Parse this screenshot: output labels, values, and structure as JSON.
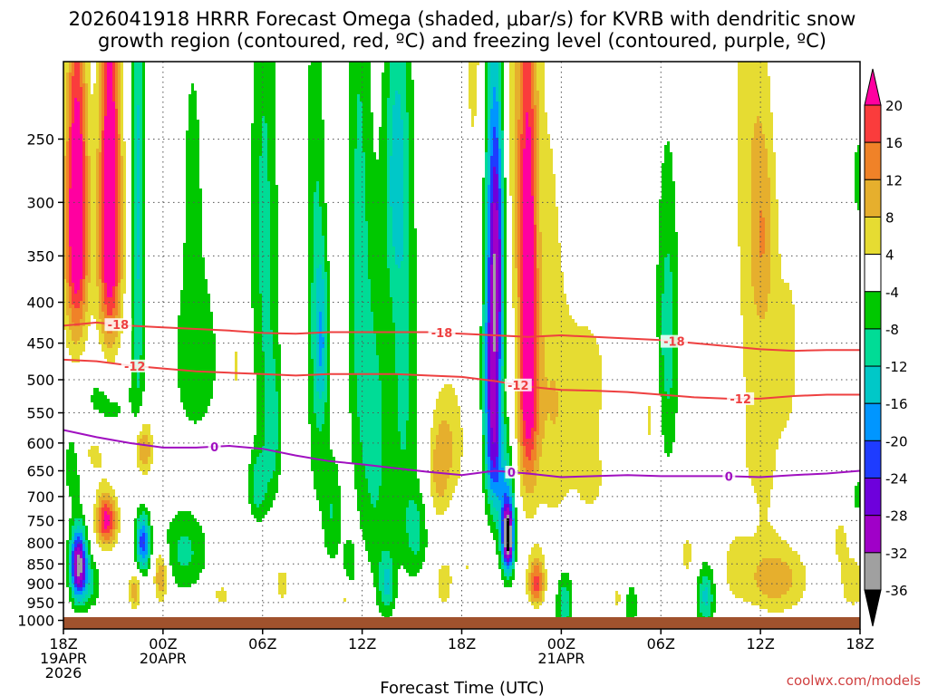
{
  "chart_data": {
    "type": "heatmap",
    "title_lines": [
      "2026041918 HRRR Forecast Omega (shaded, μbar/s) for KVRB with dendritic snow",
      "growth region (contoured, red, ºC) and freezing level (contoured, purple, ºC)"
    ],
    "xlabel": "Forecast Time (UTC)",
    "credit": "coolwx.com/models",
    "x_range_hours": [
      0,
      48
    ],
    "x_ticks": [
      {
        "hour": 0,
        "lines": [
          "18Z",
          "19APR",
          "2026"
        ]
      },
      {
        "hour": 6,
        "lines": [
          "00Z",
          "20APR"
        ]
      },
      {
        "hour": 12,
        "lines": [
          "06Z"
        ]
      },
      {
        "hour": 18,
        "lines": [
          "12Z"
        ]
      },
      {
        "hour": 24,
        "lines": [
          "18Z"
        ]
      },
      {
        "hour": 30,
        "lines": [
          "00Z",
          "21APR"
        ]
      },
      {
        "hour": 36,
        "lines": [
          "06Z"
        ]
      },
      {
        "hour": 42,
        "lines": [
          "12Z"
        ]
      },
      {
        "hour": 48,
        "lines": [
          "18Z"
        ]
      }
    ],
    "y_range_hpa": [
      200,
      1025
    ],
    "y_ticks": [
      "250",
      "300",
      "350",
      "400",
      "450",
      "500",
      "550",
      "600",
      "650",
      "700",
      "750",
      "800",
      "850",
      "900",
      "950",
      "1000"
    ],
    "colorbar": {
      "colors": [
        "#000000",
        "#a0a0a0",
        "#a000c8",
        "#6e00dc",
        "#1e3cff",
        "#0096ff",
        "#00c8c8",
        "#00dc96",
        "#00c800",
        "#ffffff",
        "#e6dc32",
        "#e6af2d",
        "#f08228",
        "#fa3c3c",
        "#ff00a0"
      ],
      "labels": [
        "-36",
        "-32",
        "-28",
        "-24",
        "-20",
        "-16",
        "-12",
        "-8",
        "-4",
        "4",
        "8",
        "12",
        "16",
        "20"
      ]
    },
    "omega_blobs": [
      {
        "x": 0.8,
        "p": 330,
        "sx": 0.5,
        "sp": 80,
        "a": 26
      },
      {
        "x": 0.8,
        "p": 210,
        "sx": 0.4,
        "sp": 70,
        "a": 10
      },
      {
        "x": 2.8,
        "p": 330,
        "sx": 0.5,
        "sp": 90,
        "a": 26
      },
      {
        "x": 2.8,
        "p": 180,
        "sx": 0.4,
        "sp": 70,
        "a": 12
      },
      {
        "x": 2.6,
        "p": 750,
        "sx": 0.45,
        "sp": 40,
        "a": 22
      },
      {
        "x": 1.8,
        "p": 610,
        "sx": 0.8,
        "sp": 40,
        "a": 7
      },
      {
        "x": 0.9,
        "p": 850,
        "sx": 0.35,
        "sp": 60,
        "a": -34
      },
      {
        "x": 0.6,
        "p": 640,
        "sx": 0.5,
        "sp": 55,
        "a": -7
      },
      {
        "x": 2.5,
        "p": 540,
        "sx": 1.1,
        "sp": 50,
        "a": -7
      },
      {
        "x": 1.6,
        "p": 900,
        "sx": 0.5,
        "sp": 50,
        "a": -8
      },
      {
        "x": 4.5,
        "p": 300,
        "sx": 0.3,
        "sp": 190,
        "a": -13
      },
      {
        "x": 4.8,
        "p": 610,
        "sx": 0.4,
        "sp": 35,
        "a": 14
      },
      {
        "x": 4.8,
        "p": 800,
        "sx": 0.3,
        "sp": 45,
        "a": -22
      },
      {
        "x": 4.3,
        "p": 920,
        "sx": 0.25,
        "sp": 35,
        "a": 11
      },
      {
        "x": 5.9,
        "p": 880,
        "sx": 0.3,
        "sp": 45,
        "a": 14
      },
      {
        "x": 7.3,
        "p": 820,
        "sx": 1.0,
        "sp": 70,
        "a": -9
      },
      {
        "x": 8.0,
        "p": 470,
        "sx": 1.1,
        "sp": 90,
        "a": -7
      },
      {
        "x": 7.8,
        "p": 270,
        "sx": 0.5,
        "sp": 80,
        "a": -5
      },
      {
        "x": 10.4,
        "p": 480,
        "sx": 0.25,
        "sp": 55,
        "a": 5
      },
      {
        "x": 12.1,
        "p": 320,
        "sx": 0.6,
        "sp": 180,
        "a": -9
      },
      {
        "x": 12.6,
        "p": 580,
        "sx": 0.4,
        "sp": 90,
        "a": -9
      },
      {
        "x": 11.7,
        "p": 680,
        "sx": 0.4,
        "sp": 50,
        "a": -10
      },
      {
        "x": 15.2,
        "p": 380,
        "sx": 0.4,
        "sp": 250,
        "a": -8
      },
      {
        "x": 15.6,
        "p": 450,
        "sx": 0.3,
        "sp": 80,
        "a": -12
      },
      {
        "x": 16.2,
        "p": 730,
        "sx": 0.4,
        "sp": 90,
        "a": -8
      },
      {
        "x": 17.0,
        "p": 930,
        "sx": 0.3,
        "sp": 40,
        "a": 6
      },
      {
        "x": 17.2,
        "p": 860,
        "sx": 0.3,
        "sp": 50,
        "a": -7
      },
      {
        "x": 19.5,
        "p": 900,
        "sx": 0.35,
        "sp": 60,
        "a": -12
      },
      {
        "x": 20.0,
        "p": 270,
        "sx": 0.5,
        "sp": 80,
        "a": -10
      },
      {
        "x": 17.8,
        "p": 350,
        "sx": 0.5,
        "sp": 230,
        "a": -9
      },
      {
        "x": 18.8,
        "p": 600,
        "sx": 0.6,
        "sp": 200,
        "a": -9
      },
      {
        "x": 20.5,
        "p": 480,
        "sx": 0.6,
        "sp": 240,
        "a": -9
      },
      {
        "x": 21.3,
        "p": 780,
        "sx": 0.5,
        "sp": 70,
        "a": -8
      },
      {
        "x": 22.6,
        "p": 660,
        "sx": 0.4,
        "sp": 60,
        "a": 7
      },
      {
        "x": 23.2,
        "p": 600,
        "sx": 0.7,
        "sp": 80,
        "a": 8
      },
      {
        "x": 22.9,
        "p": 900,
        "sx": 0.4,
        "sp": 50,
        "a": 6
      },
      {
        "x": 24.3,
        "p": 860,
        "sx": 0.6,
        "sp": 50,
        "a": 4
      },
      {
        "x": 25.8,
        "p": 330,
        "sx": 0.4,
        "sp": 230,
        "a": -10
      },
      {
        "x": 24.8,
        "p": 150,
        "sx": 0.6,
        "sp": 110,
        "a": 6
      },
      {
        "x": 26.1,
        "p": 360,
        "sx": 0.35,
        "sp": 110,
        "a": -25
      },
      {
        "x": 25.9,
        "p": 610,
        "sx": 0.35,
        "sp": 75,
        "a": -19
      },
      {
        "x": 25.7,
        "p": 480,
        "sx": 0.3,
        "sp": 60,
        "a": -10
      },
      {
        "x": 26.8,
        "p": 790,
        "sx": 0.25,
        "sp": 55,
        "a": -36
      },
      {
        "x": 26.6,
        "p": 700,
        "sx": 0.4,
        "sp": 90,
        "a": -12
      },
      {
        "x": 28.0,
        "p": 380,
        "sx": 0.4,
        "sp": 170,
        "a": 23
      },
      {
        "x": 28.0,
        "p": 560,
        "sx": 0.5,
        "sp": 90,
        "a": 9
      },
      {
        "x": 27.3,
        "p": 230,
        "sx": 0.7,
        "sp": 120,
        "a": 6
      },
      {
        "x": 29.3,
        "p": 400,
        "sx": 0.7,
        "sp": 200,
        "a": 5
      },
      {
        "x": 29.8,
        "p": 620,
        "sx": 1.0,
        "sp": 120,
        "a": 4
      },
      {
        "x": 28.5,
        "p": 900,
        "sx": 0.35,
        "sp": 50,
        "a": 17
      },
      {
        "x": 28.6,
        "p": 990,
        "sx": 0.6,
        "sp": 25,
        "a": -6
      },
      {
        "x": 31.6,
        "p": 500,
        "sx": 1.3,
        "sp": 90,
        "a": 5
      },
      {
        "x": 31.8,
        "p": 670,
        "sx": 0.6,
        "sp": 50,
        "a": 5
      },
      {
        "x": 30.2,
        "p": 950,
        "sx": 0.35,
        "sp": 60,
        "a": -11
      },
      {
        "x": 33.4,
        "p": 940,
        "sx": 0.3,
        "sp": 35,
        "a": 5
      },
      {
        "x": 34.2,
        "p": 960,
        "sx": 0.3,
        "sp": 45,
        "a": -8
      },
      {
        "x": 36.4,
        "p": 440,
        "sx": 0.5,
        "sp": 140,
        "a": -10
      },
      {
        "x": 35.4,
        "p": 560,
        "sx": 0.4,
        "sp": 70,
        "a": 5
      },
      {
        "x": 37.6,
        "p": 830,
        "sx": 0.4,
        "sp": 50,
        "a": 5
      },
      {
        "x": 38.7,
        "p": 935,
        "sx": 0.4,
        "sp": 60,
        "a": -13
      },
      {
        "x": 41.4,
        "p": 230,
        "sx": 0.8,
        "sp": 160,
        "a": 6
      },
      {
        "x": 42.2,
        "p": 330,
        "sx": 0.5,
        "sp": 70,
        "a": 8
      },
      {
        "x": 42.0,
        "p": 620,
        "sx": 1.1,
        "sp": 170,
        "a": 5
      },
      {
        "x": 43.0,
        "p": 890,
        "sx": 1.3,
        "sp": 60,
        "a": 10
      },
      {
        "x": 40.5,
        "p": 860,
        "sx": 0.6,
        "sp": 60,
        "a": 5
      },
      {
        "x": 43.8,
        "p": 450,
        "sx": 0.6,
        "sp": 120,
        "a": 4
      },
      {
        "x": 47.6,
        "p": 900,
        "sx": 0.7,
        "sp": 60,
        "a": 6
      },
      {
        "x": 46.8,
        "p": 790,
        "sx": 0.4,
        "sp": 40,
        "a": 5
      },
      {
        "x": 47.9,
        "p": 700,
        "sx": 0.3,
        "sp": 30,
        "a": -6
      },
      {
        "x": 47.9,
        "p": 280,
        "sx": 0.2,
        "sp": 25,
        "a": -7
      },
      {
        "x": 41.3,
        "p": 730,
        "sx": 0.25,
        "sp": 25,
        "a": -7
      },
      {
        "x": 13.2,
        "p": 900,
        "sx": 0.4,
        "sp": 50,
        "a": 5
      },
      {
        "x": 9.5,
        "p": 930,
        "sx": 0.6,
        "sp": 30,
        "a": 5
      }
    ],
    "contours": [
      {
        "name": "-18",
        "color": "#ee4040",
        "x": [
          0,
          2,
          4,
          6,
          8,
          10,
          12,
          14,
          16,
          18,
          20,
          22,
          24,
          26,
          28,
          30,
          32,
          34,
          36,
          38,
          40,
          42,
          44,
          46,
          48
        ],
        "p": [
          428,
          424,
          428,
          430,
          432,
          434,
          437,
          438,
          436,
          436,
          436,
          436,
          438,
          440,
          442,
          440,
          442,
          444,
          446,
          450,
          454,
          458,
          460,
          459,
          459
        ],
        "label_x": [
          3.3,
          22.8,
          36.8
        ]
      },
      {
        "name": "-12",
        "color": "#ee4040",
        "x": [
          0,
          2,
          4,
          6,
          8,
          10,
          12,
          14,
          16,
          18,
          20,
          22,
          24,
          26,
          28,
          30,
          32,
          34,
          36,
          38,
          40,
          42,
          44,
          46,
          48
        ],
        "p": [
          472,
          474,
          480,
          484,
          488,
          490,
          492,
          494,
          492,
          492,
          492,
          494,
          496,
          502,
          510,
          515,
          516,
          518,
          522,
          526,
          528,
          528,
          524,
          522,
          522
        ],
        "label_x": [
          4.3,
          27.4,
          40.8
        ]
      },
      {
        "name": "0",
        "color": "#a010c0",
        "x": [
          0,
          2,
          4,
          6,
          8,
          10,
          12,
          14,
          16,
          18,
          20,
          22,
          24,
          26,
          28,
          30,
          32,
          34,
          36,
          38,
          40,
          42,
          44,
          46,
          48
        ],
        "p": [
          578,
          590,
          600,
          608,
          608,
          605,
          610,
          622,
          632,
          638,
          645,
          652,
          658,
          650,
          655,
          662,
          660,
          658,
          660,
          660,
          660,
          662,
          658,
          655,
          650
        ],
        "label_x": [
          9.1,
          27.0,
          40.1
        ]
      }
    ]
  }
}
